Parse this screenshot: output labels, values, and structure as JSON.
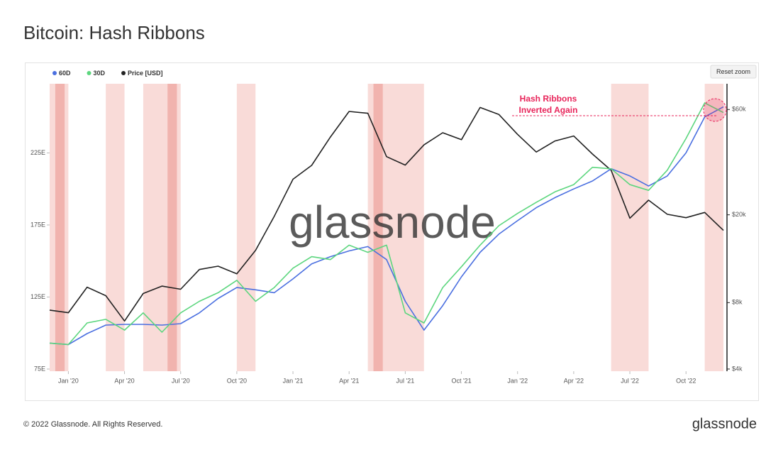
{
  "chart_data": {
    "type": "line",
    "title": "Bitcoin: Hash Ribbons",
    "x": [
      "2019-12",
      "2020-01",
      "2020-02",
      "2020-03",
      "2020-04",
      "2020-05",
      "2020-06",
      "2020-07",
      "2020-08",
      "2020-09",
      "2020-10",
      "2020-11",
      "2020-12",
      "2021-01",
      "2021-02",
      "2021-03",
      "2021-04",
      "2021-05",
      "2021-06",
      "2021-07",
      "2021-08",
      "2021-09",
      "2021-10",
      "2021-11",
      "2021-12",
      "2022-01",
      "2022-02",
      "2022-03",
      "2022-04",
      "2022-05",
      "2022-06",
      "2022-07",
      "2022-08",
      "2022-09",
      "2022-10",
      "2022-11",
      "2022-12"
    ],
    "series": [
      {
        "name": "60D",
        "color": "#4a6fe0",
        "values": [
          93,
          92,
          99.6,
          105.5,
          106,
          106,
          105.5,
          106.5,
          114,
          124,
          131.6,
          130,
          128,
          137.6,
          148,
          153,
          157,
          160,
          151,
          122,
          102,
          119,
          139,
          156,
          168.6,
          178,
          187,
          194,
          200,
          205.5,
          214,
          209,
          202,
          209,
          225,
          250,
          257
        ]
      },
      {
        "name": "30D",
        "color": "#5cd67e",
        "values": [
          93,
          92,
          107,
          109.5,
          102,
          114,
          100.6,
          114,
          122,
          128,
          136.6,
          122,
          131.6,
          145,
          153,
          151,
          161,
          156,
          161,
          114,
          107,
          131.6,
          146,
          161,
          174.5,
          183,
          190.7,
          198,
          203,
          215,
          214,
          203,
          199,
          213,
          235,
          259.7,
          253
        ]
      },
      {
        "name": "Price [USD]",
        "color": "#222222",
        "axis": "y2",
        "values": [
          7400,
          7200,
          9400,
          8600,
          6600,
          8800,
          9500,
          9200,
          11300,
          11700,
          10800,
          13800,
          19700,
          29000,
          33500,
          45000,
          58800,
          57700,
          36700,
          33600,
          41500,
          47100,
          43800,
          61300,
          57000,
          46300,
          38500,
          43200,
          45500,
          37700,
          31800,
          19300,
          23300,
          20100,
          19400,
          20500,
          17000
        ]
      }
    ],
    "xlim": [
      "2019-12",
      "2022-12"
    ],
    "xticks": [
      {
        "value": "2020-01",
        "label": "Jan '20"
      },
      {
        "value": "2020-04",
        "label": "Apr '20"
      },
      {
        "value": "2020-07",
        "label": "Jul '20"
      },
      {
        "value": "2020-10",
        "label": "Oct '20"
      },
      {
        "value": "2021-01",
        "label": "Jan '21"
      },
      {
        "value": "2021-04",
        "label": "Apr '21"
      },
      {
        "value": "2021-07",
        "label": "Jul '21"
      },
      {
        "value": "2021-10",
        "label": "Oct '21"
      },
      {
        "value": "2022-01",
        "label": "Jan '22"
      },
      {
        "value": "2022-04",
        "label": "Apr '22"
      },
      {
        "value": "2022-07",
        "label": "Jul '22"
      },
      {
        "value": "2022-10",
        "label": "Oct '22"
      }
    ],
    "ylim": [
      73.5,
      273
    ],
    "yticks": [
      {
        "value": 75,
        "label": "75E"
      },
      {
        "value": 125,
        "label": "125E"
      },
      {
        "value": 175,
        "label": "175E"
      },
      {
        "value": 225,
        "label": "225E"
      }
    ],
    "y2lim": [
      3910,
      78500
    ],
    "y2log": true,
    "y2ticks": [
      {
        "value": 4000,
        "label": "$4k"
      },
      {
        "value": 8000,
        "label": "$8k"
      },
      {
        "value": 20000,
        "label": "$20k"
      },
      {
        "value": 60000,
        "label": "$60k"
      }
    ],
    "bands": [
      [
        "2019-12",
        "2020-01"
      ],
      [
        "2020-03",
        "2020-04"
      ],
      [
        "2020-05",
        "2020-07"
      ],
      [
        "2020-10",
        "2020-11"
      ],
      [
        "2021-05",
        "2021-08"
      ],
      [
        "2022-06",
        "2022-08"
      ],
      [
        "2022-11",
        "2022-12"
      ]
    ],
    "band_color": "#f7cfcb",
    "dark_bands": [
      [
        "2019-12",
        "2020-01"
      ],
      [
        "2020-06",
        "2020-07"
      ],
      [
        "2021-05",
        "2021-06"
      ]
    ],
    "dark_band_color": "#eea39c",
    "annotation": [
      "Hash Ribbons",
      "Inverted Again"
    ],
    "annotation_color": "#e8245a",
    "legend": "top-left",
    "watermark": "glassnode",
    "button": "Reset zoom",
    "footer": "© 2022 Glassnode. All Rights Reserved.",
    "logo": "glassnode"
  }
}
